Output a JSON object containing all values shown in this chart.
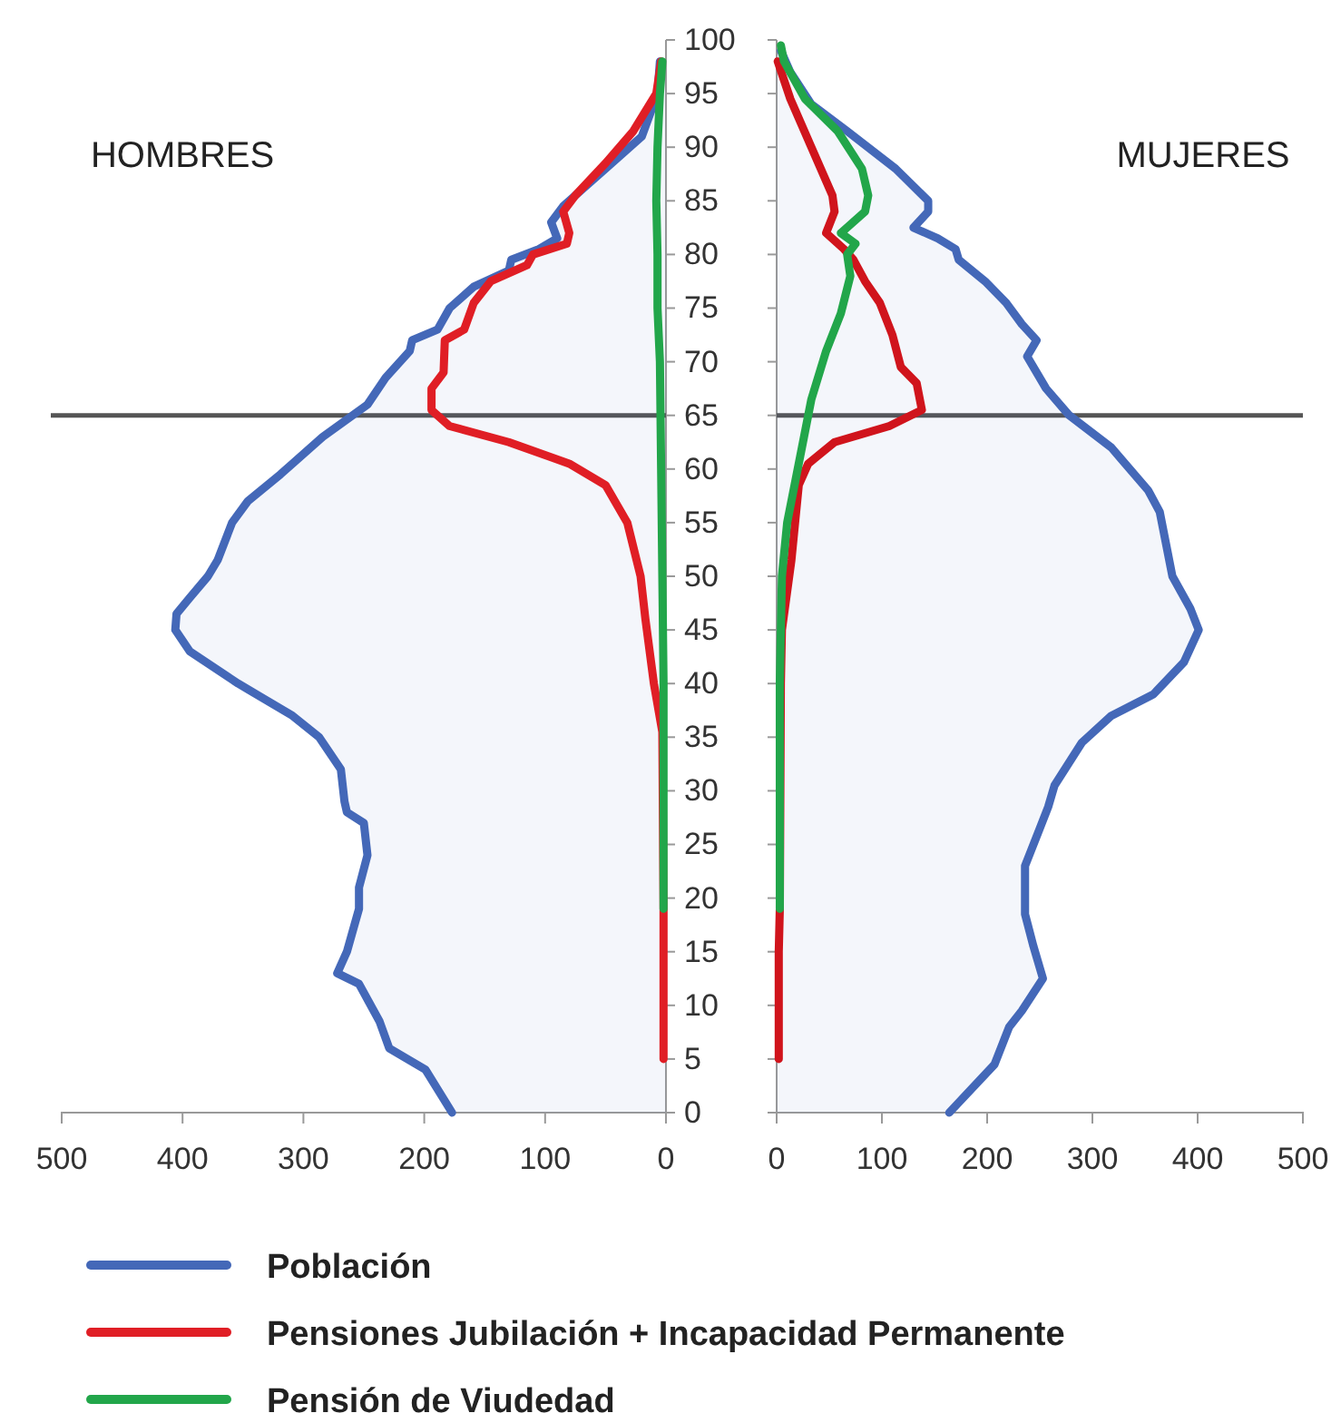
{
  "chart_data": [
    {
      "type": "line",
      "title": "HOMBRES",
      "orientation": "horizontal",
      "xlim": [
        500,
        0
      ],
      "xticks": [
        500,
        400,
        300,
        200,
        100,
        0
      ],
      "ylim": [
        0,
        100
      ],
      "yticks": [
        0,
        5,
        10,
        15,
        20,
        25,
        30,
        35,
        40,
        45,
        50,
        55,
        60,
        65,
        70,
        75,
        80,
        85,
        90,
        95,
        100
      ],
      "legend": "bottom",
      "ref_lines": [
        {
          "axis": "y",
          "value": 65,
          "color": "#555555"
        }
      ],
      "series": [
        {
          "name": "Población",
          "type": "area",
          "color": "#4468b8",
          "x": [
            0,
            4,
            6,
            8.5,
            12,
            13,
            15,
            19,
            21,
            24,
            27,
            28,
            29,
            32,
            35,
            37,
            40,
            43,
            45,
            46.5,
            48,
            50,
            51.5,
            55,
            57,
            59.5,
            63,
            66,
            68.5,
            71,
            72,
            73,
            75,
            77,
            78.5,
            79.5,
            80.5,
            81.5,
            83,
            84.5,
            88,
            91,
            95,
            98
          ],
          "values": [
            177,
            199,
            229,
            237,
            254,
            272,
            264,
            254,
            254,
            247,
            250,
            264,
            266,
            269,
            287,
            309,
            354,
            394,
            406,
            405,
            394,
            379,
            371,
            359,
            346,
            319,
            284,
            247,
            232,
            212,
            210,
            189,
            179,
            159,
            130,
            128,
            105,
            90,
            95,
            85,
            50,
            20,
            7,
            5
          ]
        },
        {
          "name": "Pensiones Jubilación + Incapacidad Permanente",
          "color": "#e01e25",
          "x": [
            5,
            10,
            15,
            19,
            25,
            30,
            35.5,
            40,
            46,
            50,
            55,
            58.5,
            60.5,
            62.5,
            64,
            65.5,
            67.5,
            69,
            72,
            73,
            75.5,
            77.5,
            79,
            80,
            81,
            82,
            84,
            85.5,
            88.5,
            91.5,
            95,
            98
          ],
          "values": [
            2,
            2,
            2,
            2,
            null,
            null,
            3,
            10,
            17,
            21,
            32,
            50,
            80,
            130,
            179,
            194,
            194,
            184,
            183,
            167,
            159,
            145,
            115,
            110,
            82,
            80,
            85,
            75,
            50,
            27,
            8,
            4
          ]
        },
        {
          "name": "Pensión de Viudedad",
          "color": "#22a64a",
          "x": [
            19,
            30,
            40,
            50,
            60,
            70,
            75,
            80,
            85,
            90,
            95,
            98
          ],
          "values": [
            2,
            2,
            2,
            3,
            4,
            5,
            7,
            7,
            8,
            7,
            5,
            3
          ]
        }
      ]
    },
    {
      "type": "line",
      "title": "MUJERES",
      "orientation": "horizontal",
      "xlim": [
        0,
        500
      ],
      "xticks": [
        0,
        100,
        200,
        300,
        400,
        500
      ],
      "ylim": [
        0,
        100
      ],
      "yticks": [
        0,
        5,
        10,
        15,
        20,
        25,
        30,
        35,
        40,
        45,
        50,
        55,
        60,
        65,
        70,
        75,
        80,
        85,
        90,
        95,
        100
      ],
      "tick_labels": "x",
      "ref_lines": [
        {
          "axis": "y",
          "value": 65,
          "color": "#555555"
        }
      ],
      "series": [
        {
          "type": "area",
          "color": "#4468b8",
          "x": [
            0,
            4.5,
            8,
            9.5,
            12.5,
            15.5,
            18.5,
            23,
            26.5,
            28.5,
            30.5,
            34.5,
            37,
            39,
            42,
            45,
            47,
            50,
            56,
            58,
            62,
            65,
            67.5,
            70.5,
            72,
            73.5,
            75.5,
            77.5,
            79.5,
            80.5,
            81.5,
            82.5,
            84,
            85,
            88,
            91.5,
            94,
            97,
            99
          ],
          "values": [
            164,
            207,
            221,
            233,
            253,
            244,
            236,
            236,
            250,
            258,
            264,
            290,
            318,
            358,
            387,
            401,
            393,
            376,
            364,
            353,
            318,
            278,
            256,
            238,
            247,
            233,
            218,
            198,
            173,
            170,
            153,
            130,
            144,
            144,
            113,
            67,
            33,
            13,
            4
          ]
        },
        {
          "color": "#d0141c",
          "x": [
            5,
            10,
            15,
            19,
            30,
            40,
            45,
            51.5,
            58.5,
            60.5,
            62.5,
            64,
            65.5,
            68,
            69.5,
            72.5,
            75.5,
            77.5,
            79.5,
            80.5,
            82,
            84,
            85.5,
            90,
            94.5,
            98
          ],
          "values": [
            2,
            2,
            2,
            3,
            null,
            4,
            5,
            14,
            21,
            30,
            55,
            107,
            138,
            133,
            118,
            110,
            98,
            84,
            73,
            64,
            47,
            55,
            53,
            33,
            13,
            1
          ]
        },
        {
          "color": "#22a64a",
          "x": [
            19,
            30,
            40,
            50,
            55,
            60.5,
            66.5,
            71,
            74.5,
            78,
            80,
            81,
            82,
            84,
            85.5,
            88,
            91.5,
            94.5,
            98,
            99.5
          ],
          "values": [
            3,
            3,
            3,
            5,
            10,
            21,
            33,
            47,
            61,
            70,
            67,
            75,
            61,
            84,
            87,
            81,
            58,
            27,
            7,
            4
          ]
        }
      ]
    }
  ]
}
